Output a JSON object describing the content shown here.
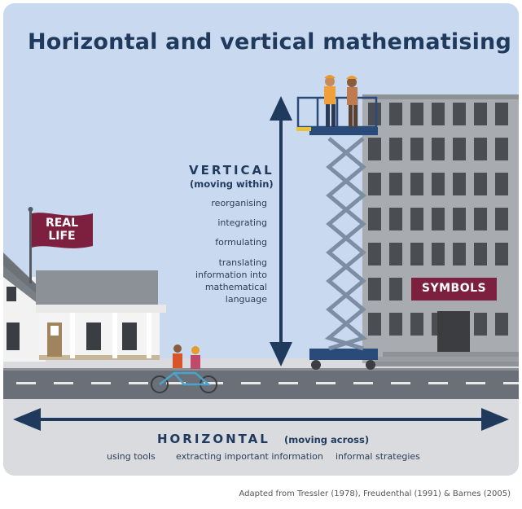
{
  "title": "Horizontal and vertical mathematising",
  "vertical": {
    "heading": "VERTICAL",
    "subheading": "(moving within)",
    "items": [
      "reorganising",
      "integrating",
      "formulating",
      "translating\ninformation into\nmathematical\nlanguage"
    ]
  },
  "horizontal": {
    "heading": "HORIZONTAL",
    "subheading": "(moving across)",
    "items": [
      "using tools",
      "extracting important information",
      "informal strategies"
    ]
  },
  "flag": {
    "line1": "REAL",
    "line2": "LIFE"
  },
  "building_sign": "SYMBOLS",
  "credit": "Adapted from Tressler (1978), Freudenthal (1991) & Barnes (2005)",
  "colors": {
    "sky": "#c9daf0",
    "navy": "#1f3a5c",
    "maroon": "#7d1f3e",
    "road": "#6b7078",
    "ground": "#d9dbdf",
    "building": "#a8abaf"
  }
}
